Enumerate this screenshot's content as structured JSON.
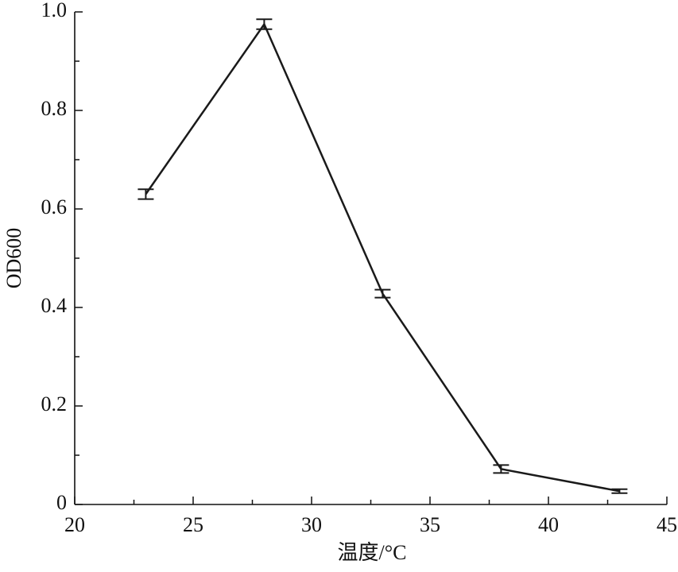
{
  "chart_data": {
    "type": "line",
    "x_label": "温度/°C",
    "y_label": "OD600",
    "series": [
      {
        "name": "OD600",
        "color": "#1a1a1a",
        "x": [
          23,
          28,
          33,
          38,
          43
        ],
        "values": [
          0.63,
          0.975,
          0.428,
          0.072,
          0.027
        ],
        "errors": [
          0.01,
          0.01,
          0.008,
          0.008,
          0.004
        ]
      }
    ],
    "xlim": [
      20,
      45
    ],
    "xticks": [
      20,
      25,
      30,
      35,
      40,
      45
    ],
    "ylim": [
      0,
      1
    ],
    "yticks": [
      0,
      0.2,
      0.4,
      0.6,
      0.8,
      {
        "value": 1,
        "label": "1.0"
      }
    ]
  }
}
